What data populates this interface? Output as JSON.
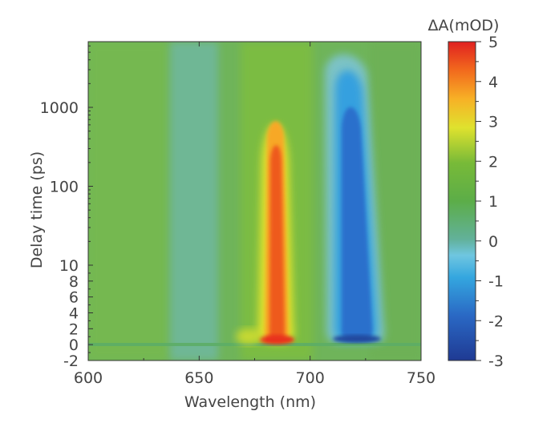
{
  "chart_data": {
    "type": "heatmap",
    "xlabel": "Wavelength (nm)",
    "ylabel": "Delay time (ps)",
    "x_ticks": [
      "600",
      "650",
      "700",
      "750"
    ],
    "xlim": [
      600,
      750
    ],
    "y_ticks": [
      "-2",
      "0",
      "2",
      "4",
      "6",
      "8",
      "10",
      "100",
      "1000"
    ],
    "y_scale": "linear from -2 to 10 ps, log from 10 to ~6000 ps",
    "ylim": [
      -2,
      6000
    ],
    "colorbar": {
      "label": "ΔA(mOD)",
      "ticks": [
        "5",
        "4",
        "3",
        "2",
        "1",
        "0",
        "-1",
        "-2",
        "-3"
      ],
      "range": [
        -3,
        5
      ],
      "colors": [
        "#1f3a93",
        "#2a8ad8",
        "#5ec3e6",
        "#62b19a",
        "#5cad48",
        "#6fb83a",
        "#d9e02f",
        "#f5b025",
        "#f26a1d",
        "#e02020"
      ]
    },
    "features": [
      {
        "type": "positive band",
        "center_nm": 685,
        "width_nm": 10,
        "peak_mOD": 5,
        "extends_to_ps": 700
      },
      {
        "type": "negative band",
        "center_nm": 722,
        "width_nm": 18,
        "peak_mOD": -3,
        "extends_to_ps": 3000
      },
      {
        "type": "weak negative band",
        "center_nm": 640,
        "width_nm": 12,
        "peak_mOD": -0.6
      }
    ]
  }
}
